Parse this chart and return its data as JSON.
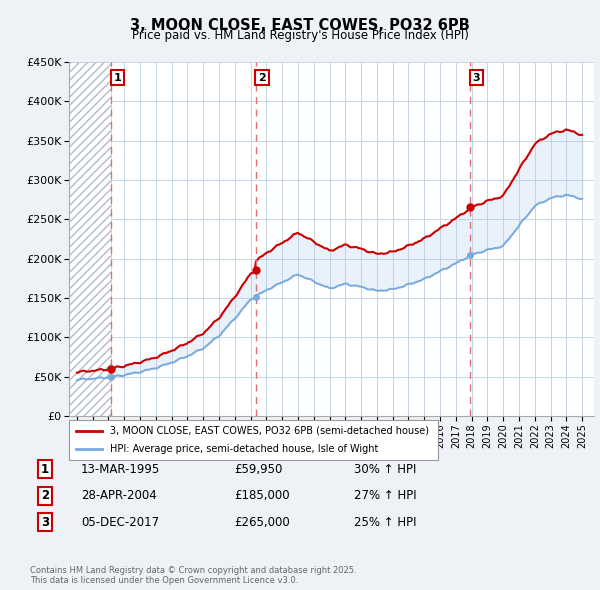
{
  "title": "3, MOON CLOSE, EAST COWES, PO32 6PB",
  "subtitle": "Price paid vs. HM Land Registry's House Price Index (HPI)",
  "ylim": [
    0,
    450000
  ],
  "yticks": [
    0,
    50000,
    100000,
    150000,
    200000,
    250000,
    300000,
    350000,
    400000,
    450000
  ],
  "ytick_labels": [
    "£0",
    "£50K",
    "£100K",
    "£150K",
    "£200K",
    "£250K",
    "£300K",
    "£350K",
    "£400K",
    "£450K"
  ],
  "xlim_start": 1992.5,
  "xlim_end": 2025.75,
  "sale_dates": [
    1995.19,
    2004.32,
    2017.92
  ],
  "sale_prices": [
    59950,
    185000,
    265000
  ],
  "sale_labels": [
    "1",
    "2",
    "3"
  ],
  "sale_display": [
    {
      "num": "1",
      "date": "13-MAR-1995",
      "price": "£59,950",
      "hpi": "30% ↑ HPI"
    },
    {
      "num": "2",
      "date": "28-APR-2004",
      "price": "£185,000",
      "hpi": "27% ↑ HPI"
    },
    {
      "num": "3",
      "date": "05-DEC-2017",
      "price": "£265,000",
      "hpi": "25% ↑ HPI"
    }
  ],
  "legend_line1": "3, MOON CLOSE, EAST COWES, PO32 6PB (semi-detached house)",
  "legend_line2": "HPI: Average price, semi-detached house, Isle of Wight",
  "copyright": "Contains HM Land Registry data © Crown copyright and database right 2025.\nThis data is licensed under the Open Government Licence v3.0.",
  "bg_color": "#eef2f7",
  "plot_bg": "#ffffff",
  "grid_color": "#c5d5e5",
  "hatch_color": "#b0bcc8",
  "red_color": "#cc0000",
  "blue_color": "#7aaadd",
  "blue_fill_color": "#aaccee",
  "dashed_color": "#e07070"
}
